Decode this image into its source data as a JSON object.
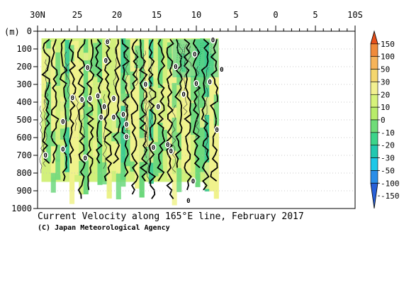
{
  "chart_data": {
    "type": "heatmap",
    "title": "Current Velocity along 165°E line, February 2017",
    "credit": "(C) Japan Meteorological Agency",
    "x_axis": {
      "range": [
        30,
        -10
      ],
      "ticks": [
        30,
        25,
        20,
        15,
        10,
        5,
        0,
        -5,
        -10
      ],
      "tick_labels": [
        "30N",
        "25",
        "20",
        "15",
        "10",
        "5",
        "0",
        "5",
        "10S"
      ]
    },
    "y_axis": {
      "label": "(m)",
      "range": [
        0,
        1000
      ],
      "ticks": [
        0,
        100,
        200,
        300,
        400,
        500,
        600,
        700,
        800,
        900,
        1000
      ],
      "tick_labels": [
        "0",
        "100",
        "200",
        "300",
        "400",
        "500",
        "600",
        "700",
        "800",
        "900",
        "1000"
      ]
    },
    "colorbar": {
      "labels": [
        "150",
        "100",
        "50",
        "30",
        "20",
        "10",
        "0",
        "-10",
        "-20",
        "-30",
        "-50",
        "-100",
        "-150"
      ],
      "colors": [
        "#e8501a",
        "#f08a3a",
        "#f6b45a",
        "#f4d66e",
        "#f2f090",
        "#d6f27a",
        "#b8ec6a",
        "#70dc78",
        "#3cd48a",
        "#22c8b0",
        "#1ec8e8",
        "#2a8ee8",
        "#2860d8"
      ]
    },
    "zero_contour_label": "0",
    "zero_labels": [
      {
        "lat": 21.2,
        "depth": 60
      },
      {
        "lat": 7.9,
        "depth": 50
      },
      {
        "lat": 10.2,
        "depth": 130
      },
      {
        "lat": 21.4,
        "depth": 165
      },
      {
        "lat": 23.7,
        "depth": 205
      },
      {
        "lat": 12.6,
        "depth": 200
      },
      {
        "lat": 6.8,
        "depth": 215
      },
      {
        "lat": 8.3,
        "depth": 285
      },
      {
        "lat": 10.0,
        "depth": 295
      },
      {
        "lat": 16.4,
        "depth": 300
      },
      {
        "lat": 11.6,
        "depth": 355
      },
      {
        "lat": 22.4,
        "depth": 365
      },
      {
        "lat": 23.4,
        "depth": 380
      },
      {
        "lat": 20.4,
        "depth": 380
      },
      {
        "lat": 25.6,
        "depth": 375
      },
      {
        "lat": 24.4,
        "depth": 385
      },
      {
        "lat": 21.6,
        "depth": 425
      },
      {
        "lat": 14.8,
        "depth": 425
      },
      {
        "lat": 19.2,
        "depth": 470
      },
      {
        "lat": 22.0,
        "depth": 485
      },
      {
        "lat": 20.4,
        "depth": 485
      },
      {
        "lat": 18.8,
        "depth": 525
      },
      {
        "lat": 26.8,
        "depth": 510
      },
      {
        "lat": 7.4,
        "depth": 555
      },
      {
        "lat": 18.8,
        "depth": 595
      },
      {
        "lat": 13.6,
        "depth": 640
      },
      {
        "lat": 15.4,
        "depth": 655
      },
      {
        "lat": 13.2,
        "depth": 675
      },
      {
        "lat": 26.8,
        "depth": 665
      },
      {
        "lat": 29.0,
        "depth": 700
      },
      {
        "lat": 24.0,
        "depth": 715
      },
      {
        "lat": 10.4,
        "depth": 845
      },
      {
        "lat": 11.0,
        "depth": 955
      }
    ],
    "data_extent": {
      "lat": [
        29.5,
        7.2
      ],
      "depth": [
        40,
        960
      ]
    }
  }
}
